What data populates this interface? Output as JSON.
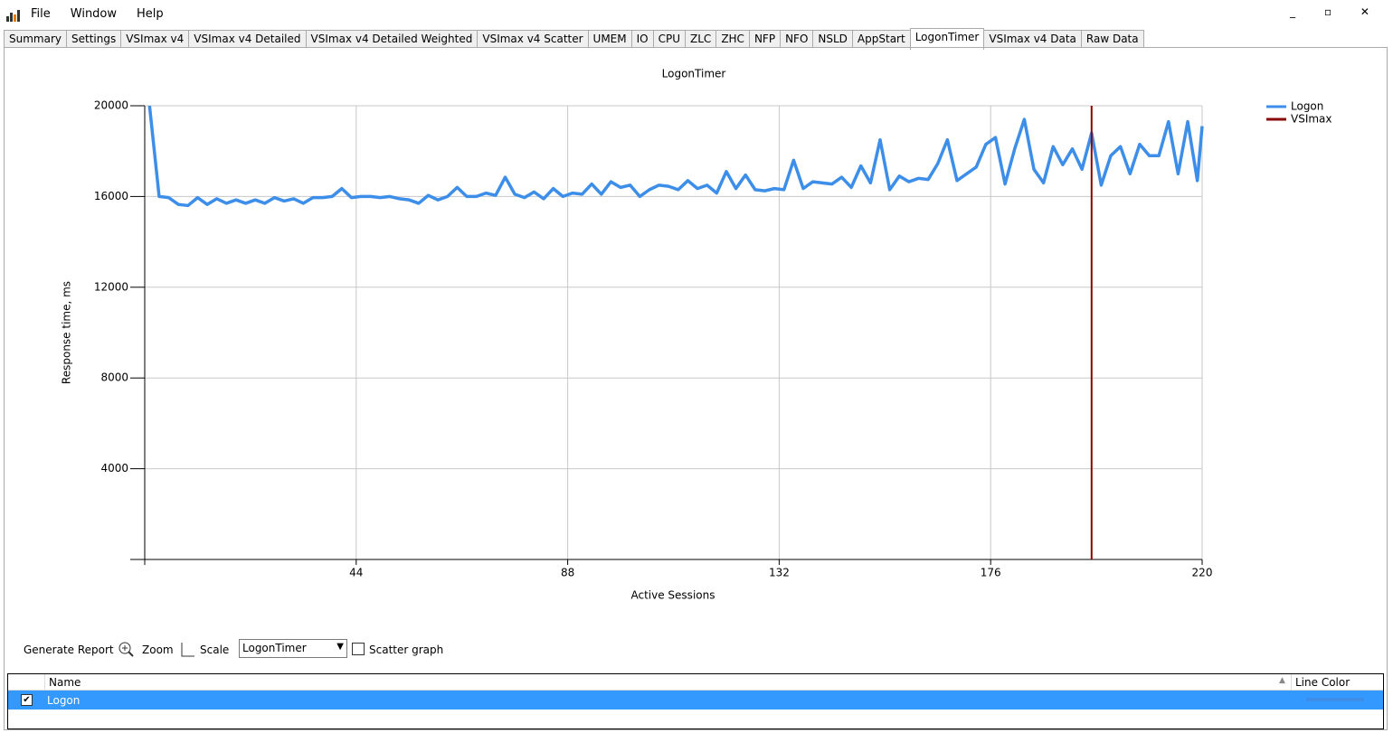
{
  "menu": [
    "File",
    "Window",
    "Help"
  ],
  "tabs": [
    "Summary",
    "Settings",
    "VSImax v4",
    "VSImax v4 Detailed",
    "VSImax v4 Detailed Weighted",
    "VSImax v4 Scatter",
    "UMEM",
    "IO",
    "CPU",
    "ZLC",
    "ZHC",
    "NFP",
    "NFO",
    "NSLD",
    "AppStart",
    "LogonTimer",
    "VSImax v4 Data",
    "Raw Data"
  ],
  "chart_data": {
    "type": "line",
    "title": "LogonTimer",
    "x_label": "Active Sessions",
    "y_label": "Response time, ms",
    "xlim": [
      0,
      220
    ],
    "xticks": [
      44,
      88,
      132,
      176,
      220
    ],
    "ylim": [
      0,
      20000
    ],
    "yticks": [
      4000,
      8000,
      12000,
      16000,
      20000
    ],
    "grid": true,
    "series": [
      {
        "name": "Logon",
        "color": "#3d8ee8",
        "x": [
          1,
          3,
          5,
          7,
          9,
          11,
          13,
          15,
          17,
          19,
          21,
          23,
          25,
          27,
          29,
          31,
          33,
          35,
          37,
          39,
          41,
          43,
          45,
          47,
          49,
          51,
          53,
          55,
          57,
          59,
          61,
          63,
          65,
          67,
          69,
          71,
          73,
          75,
          77,
          79,
          81,
          83,
          85,
          87,
          89,
          91,
          93,
          95,
          97,
          99,
          101,
          103,
          105,
          107,
          109,
          111,
          113,
          115,
          117,
          119,
          121,
          123,
          125,
          127,
          129,
          131,
          133,
          135,
          137,
          139,
          141,
          143,
          145,
          147,
          149,
          151,
          153,
          155,
          157,
          159,
          161,
          163,
          165,
          167,
          169,
          171,
          173,
          175,
          177,
          179,
          181,
          183,
          185,
          187,
          189,
          191,
          193,
          195,
          197,
          199,
          201,
          203,
          205,
          207,
          209,
          211,
          213,
          215,
          217,
          219,
          220
        ],
        "values": [
          20000,
          16000,
          15950,
          15650,
          15600,
          15950,
          15650,
          15900,
          15700,
          15850,
          15700,
          15850,
          15700,
          15950,
          15800,
          15900,
          15700,
          15950,
          15950,
          16000,
          16350,
          15950,
          16000,
          16000,
          15950,
          16000,
          15900,
          15850,
          15700,
          16050,
          15850,
          16000,
          16400,
          16000,
          16000,
          16150,
          16050,
          16850,
          16100,
          15950,
          16200,
          15900,
          16350,
          16000,
          16150,
          16100,
          16550,
          16100,
          16650,
          16400,
          16500,
          16000,
          16300,
          16500,
          16450,
          16300,
          16700,
          16350,
          16500,
          16150,
          17100,
          16350,
          16950,
          16300,
          16250,
          16350,
          16300,
          17600,
          16350,
          16650,
          16600,
          16550,
          16850,
          16400,
          17350,
          16600,
          18500,
          16300,
          16900,
          16650,
          16800,
          16750,
          17450,
          18500,
          16700,
          17000,
          17300,
          18300,
          18600,
          16550,
          18100,
          19400,
          17200,
          16600,
          18200,
          17400,
          18100,
          17200,
          18800,
          16500,
          17800,
          18200,
          17000,
          18300,
          17800,
          17800,
          19300,
          17000,
          19300,
          16700,
          19100
        ]
      }
    ],
    "vsimax": {
      "name": "VSImax",
      "color": "#8b0000",
      "x": 197
    }
  },
  "toolbar": {
    "generate_report": "Generate Report",
    "zoom": "Zoom",
    "scale": "Scale",
    "dropdown": "LogonTimer",
    "scatter_graph": "Scatter graph"
  },
  "table": {
    "columns": [
      "Name",
      "Line Color"
    ],
    "rows": [
      [
        "Logon"
      ]
    ]
  }
}
